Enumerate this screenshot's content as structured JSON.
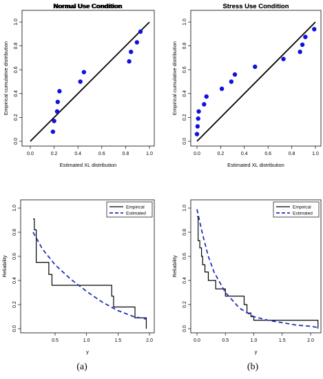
{
  "chart_data": [
    {
      "type": "scatter",
      "title": "Normal Use Condition",
      "xlabel": "Estimated XL distribution",
      "ylabel": "Empirical cumulative distribution",
      "xlim": [
        0,
        1
      ],
      "ylim": [
        0,
        1
      ],
      "x_ticks": [
        "0.0",
        "0.2",
        "0.4",
        "0.6",
        "0.8",
        "1.0"
      ],
      "y_ticks": [
        "0.0",
        "0.2",
        "0.4",
        "0.6",
        "0.8",
        "1.0"
      ],
      "reference_line": [
        [
          0,
          0
        ],
        [
          1,
          1
        ]
      ],
      "points": [
        {
          "x": 0.19,
          "y": 0.08
        },
        {
          "x": 0.2,
          "y": 0.17
        },
        {
          "x": 0.225,
          "y": 0.25
        },
        {
          "x": 0.23,
          "y": 0.33
        },
        {
          "x": 0.245,
          "y": 0.42
        },
        {
          "x": 0.42,
          "y": 0.5
        },
        {
          "x": 0.45,
          "y": 0.58
        },
        {
          "x": 0.83,
          "y": 0.67
        },
        {
          "x": 0.845,
          "y": 0.75
        },
        {
          "x": 0.895,
          "y": 0.83
        },
        {
          "x": 0.925,
          "y": 0.92
        }
      ]
    },
    {
      "type": "scatter",
      "title": "Stress Use Condition",
      "xlabel": "Estimated XL distribution",
      "ylabel": "Empirical cumulative distribution",
      "xlim": [
        0,
        1
      ],
      "ylim": [
        0,
        1
      ],
      "x_ticks": [
        "0.0",
        "0.2",
        "0.4",
        "0.6",
        "0.8",
        "1.0"
      ],
      "y_ticks": [
        "0.0",
        "0.2",
        "0.4",
        "0.6",
        "0.8",
        "1.0"
      ],
      "reference_line": [
        [
          0,
          0
        ],
        [
          1,
          1
        ]
      ],
      "points": [
        {
          "x": 0.0,
          "y": 0.06
        },
        {
          "x": 0.005,
          "y": 0.125
        },
        {
          "x": 0.01,
          "y": 0.19
        },
        {
          "x": 0.015,
          "y": 0.25
        },
        {
          "x": 0.06,
          "y": 0.31
        },
        {
          "x": 0.08,
          "y": 0.375
        },
        {
          "x": 0.21,
          "y": 0.44
        },
        {
          "x": 0.29,
          "y": 0.5
        },
        {
          "x": 0.32,
          "y": 0.56
        },
        {
          "x": 0.49,
          "y": 0.625
        },
        {
          "x": 0.73,
          "y": 0.69
        },
        {
          "x": 0.87,
          "y": 0.75
        },
        {
          "x": 0.89,
          "y": 0.81
        },
        {
          "x": 0.915,
          "y": 0.875
        },
        {
          "x": 0.99,
          "y": 0.94
        }
      ]
    },
    {
      "type": "line",
      "title": "Normal Use Condition",
      "xlabel": "y",
      "ylabel": "Reliability",
      "xlim": [
        0.15,
        2.0
      ],
      "ylim": [
        0,
        1
      ],
      "x_ticks": [
        "0.5",
        "1.0",
        "1.5",
        "2.0"
      ],
      "y_ticks": [
        "0.0",
        "0.2",
        "0.4",
        "0.6",
        "0.8",
        "1.0"
      ],
      "legend": "top-right",
      "series": [
        {
          "name": "Empirical",
          "style": "step",
          "x": [
            0.15,
            0.17,
            0.2,
            0.4,
            0.45,
            1.4,
            1.43,
            1.77,
            1.95
          ],
          "y": [
            0.91,
            0.82,
            0.55,
            0.45,
            0.36,
            0.27,
            0.18,
            0.09,
            0.0
          ]
        },
        {
          "name": "Estimated",
          "style": "dashed",
          "x": [
            0.15,
            0.3,
            0.5,
            0.75,
            1.0,
            1.25,
            1.5,
            1.75,
            1.95
          ],
          "y": [
            0.8,
            0.66,
            0.53,
            0.41,
            0.31,
            0.22,
            0.15,
            0.1,
            0.08
          ]
        }
      ]
    },
    {
      "type": "line",
      "title": "Stress Use Condition",
      "xlabel": "y",
      "ylabel": "Reliability",
      "xlim": [
        0.0,
        2.15
      ],
      "ylim": [
        0,
        1
      ],
      "x_ticks": [
        "0.0",
        "0.5",
        "1.0",
        "1.5",
        "2.0"
      ],
      "y_ticks": [
        "0.0",
        "0.2",
        "0.4",
        "0.6",
        "0.8",
        "1.0"
      ],
      "legend": "top-right",
      "series": [
        {
          "name": "Empirical",
          "style": "step",
          "x": [
            0.0,
            0.02,
            0.05,
            0.08,
            0.1,
            0.14,
            0.2,
            0.33,
            0.5,
            0.83,
            0.88,
            0.95,
            1.0,
            2.13
          ],
          "y": [
            0.93,
            0.73,
            0.67,
            0.6,
            0.53,
            0.47,
            0.4,
            0.33,
            0.27,
            0.2,
            0.13,
            0.1,
            0.07,
            0.0
          ]
        },
        {
          "name": "Estimated",
          "style": "dashed",
          "x": [
            0.0,
            0.1,
            0.2,
            0.3,
            0.5,
            0.75,
            1.0,
            1.25,
            1.5,
            1.75,
            2.0,
            2.13
          ],
          "y": [
            0.99,
            0.78,
            0.6,
            0.47,
            0.3,
            0.17,
            0.1,
            0.07,
            0.05,
            0.03,
            0.02,
            0.01
          ]
        }
      ]
    }
  ],
  "captions": [
    "(a)",
    "(b)"
  ],
  "colors": {
    "points": "#1010e0",
    "estimated": "#1f2fb8",
    "line": "#000000"
  }
}
